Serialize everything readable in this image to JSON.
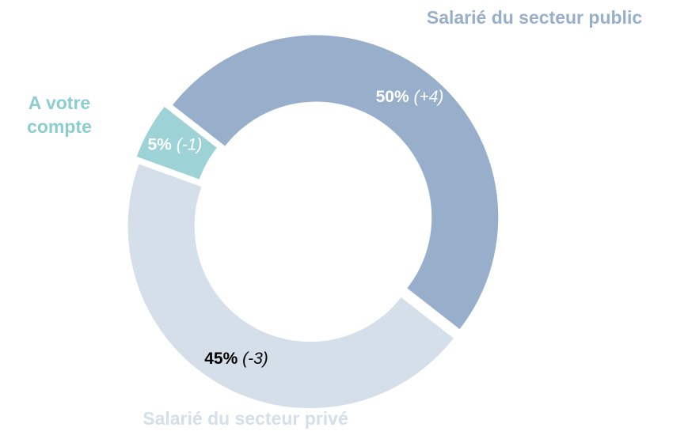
{
  "chart_data": {
    "type": "donut",
    "categories": [
      "Salarié du secteur public",
      "Salarié du secteur privé",
      "A votre compte"
    ],
    "values": [
      50,
      45,
      5
    ],
    "value_labels": [
      "50%",
      "45%",
      "5%"
    ],
    "change_labels": [
      "(+4)",
      "(-3)",
      "(-1)"
    ],
    "colors": [
      "#97afcb",
      "#d5dfe9",
      "#9dd3d6"
    ]
  }
}
